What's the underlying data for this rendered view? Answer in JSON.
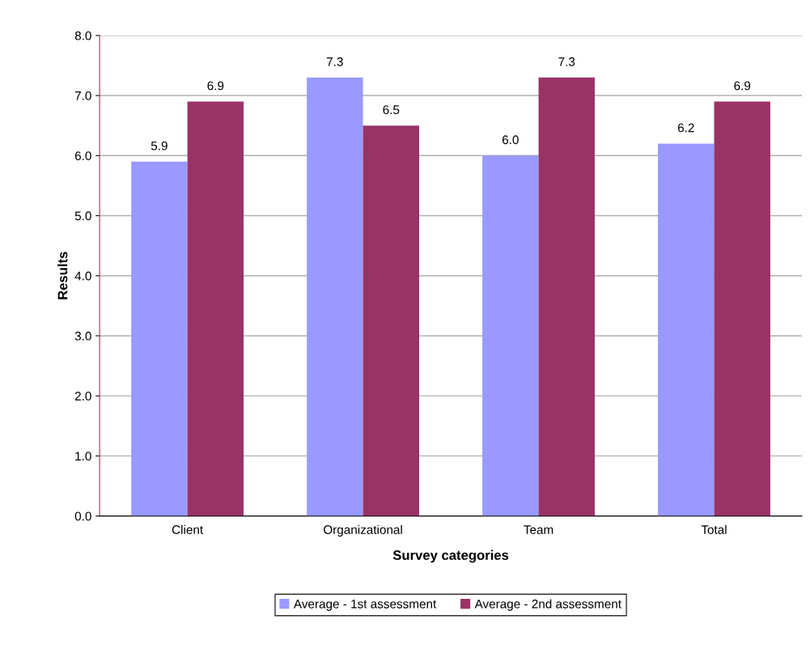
{
  "chart_data": {
    "type": "bar",
    "xlabel": "Survey categories",
    "ylabel": "Results",
    "categories": [
      "Client",
      "Organizational",
      "Team",
      "Total"
    ],
    "series": [
      {
        "name": "Average - 1st assessment",
        "color": "#9999ff",
        "values": [
          5.9,
          7.3,
          6.0,
          6.2
        ],
        "value_labels": [
          "5.9",
          "7.3",
          "6.0",
          "6.2"
        ]
      },
      {
        "name": "Average - 2nd assessment",
        "color": "#993366",
        "values": [
          6.9,
          6.5,
          7.3,
          6.9
        ],
        "value_labels": [
          "6.9",
          "6.5",
          "7.3",
          "6.9"
        ]
      }
    ],
    "ylim": [
      0,
      8
    ],
    "yticks": [
      {
        "value": 0,
        "label": "0.0"
      },
      {
        "value": 1,
        "label": "1.0"
      },
      {
        "value": 2,
        "label": "2.0"
      },
      {
        "value": 3,
        "label": "3.0"
      },
      {
        "value": 4,
        "label": "4.0"
      },
      {
        "value": 5,
        "label": "5.0"
      },
      {
        "value": 6,
        "label": "6.0"
      },
      {
        "value": 7,
        "label": "7.0"
      },
      {
        "value": 8,
        "label": "8.0"
      }
    ],
    "grid": "y",
    "legend": "bottom"
  }
}
